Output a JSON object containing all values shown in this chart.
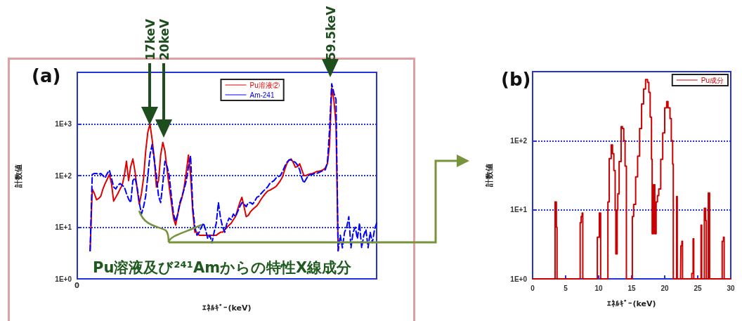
{
  "chart_data": [
    {
      "type": "line",
      "title": "(a)",
      "xlabel": "ｴﾈﾙｷﾞｰ(keV)",
      "ylabel": "計数値",
      "categories": [
        null,
        null,
        null,
        null,
        null,
        null,
        null,
        null,
        null,
        null,
        null,
        null,
        null,
        null,
        null,
        null,
        null,
        null,
        null,
        null,
        null,
        null,
        null,
        null,
        null,
        null,
        null,
        null,
        null,
        null,
        null,
        null,
        null,
        null,
        null,
        null,
        null,
        null,
        null,
        null,
        null,
        null,
        null,
        null,
        null,
        null,
        null,
        null,
        null,
        null,
        null,
        null,
        null,
        null,
        null,
        null,
        null,
        null,
        null,
        null,
        null,
        null,
        null,
        null,
        null,
        null,
        null,
        null,
        null,
        null,
        null,
        null,
        null,
        null,
        null,
        null,
        null,
        null,
        null,
        null,
        null,
        null,
        null,
        null,
        null,
        null,
        null,
        null,
        null,
        null,
        null,
        null,
        null,
        null,
        null,
        null,
        null,
        null,
        null,
        null,
        null,
        null,
        null,
        null,
        null,
        null,
        null,
        null,
        null,
        null,
        null,
        null,
        null,
        null,
        null,
        null,
        null,
        null,
        null,
        null,
        null,
        null,
        null,
        null,
        null,
        null,
        null,
        null,
        null,
        null,
        null,
        null,
        null,
        null,
        null,
        null,
        null,
        null,
        null,
        null,
        null
      ],
      "ylim": [
        1,
        10000
      ],
      "yticks": [
        {
          "value": 1,
          "label": "1E+0"
        },
        {
          "value": 10,
          "label": "1E+1"
        },
        {
          "value": 100,
          "label": "1E+2"
        },
        {
          "value": 1000,
          "label": "1E+3"
        },
        {
          "value": 10000,
          "label": null
        }
      ],
      "log": "y",
      "grid": "y",
      "legend": "top",
      "marker": "none",
      "annotations": [
        "17keV",
        "20keV",
        "59.5keV",
        "Pu溶液及び²⁴¹Amからの特性X線成分",
        "0"
      ],
      "series": [
        {
          "name": "Pu溶液②",
          "color": "#e00000",
          "line_style": "solid",
          "values": [
            null,
            null,
            null,
            null,
            null,
            null,
            3.5,
            55,
            45,
            34,
            36,
            40,
            55,
            70,
            85,
            105,
            70,
            32,
            38,
            45,
            55,
            65,
            100,
            190,
            80,
            150,
            210,
            120,
            55,
            28,
            45,
            90,
            300,
            700,
            1000,
            500,
            220,
            60,
            80,
            250,
            440,
            300,
            130,
            60,
            30,
            15,
            11,
            18,
            28,
            38,
            60,
            120,
            250,
            100,
            20,
            8,
            8,
            7,
            7,
            7,
            7,
            7,
            7,
            7,
            7,
            7,
            7.5,
            8,
            8,
            9,
            10,
            11,
            12,
            14,
            16,
            22,
            30,
            38,
            25,
            16,
            17,
            20,
            22,
            24,
            26,
            30,
            35,
            40,
            45,
            50,
            52,
            55,
            58,
            62,
            70,
            80,
            95,
            130,
            170,
            200,
            210,
            180,
            145,
            150,
            170,
            130,
            100,
            100,
            105,
            108,
            110,
            115,
            120,
            122,
            125,
            130,
            140,
            170,
            400,
            5000,
            3000,
            1000,
            3.5,
            null,
            null,
            null,
            null,
            null,
            null,
            null,
            null,
            null,
            null,
            null,
            null,
            null,
            null,
            null,
            null,
            null,
            null
          ]
        },
        {
          "name": "Am-241",
          "color": "#0000ff",
          "line_style": "dashed",
          "values": [
            null,
            null,
            null,
            null,
            null,
            null,
            3.5,
            105,
            110,
            110,
            105,
            110,
            100,
            90,
            110,
            127,
            90,
            60,
            55,
            65,
            70,
            65,
            60,
            45,
            35,
            30,
            80,
            90,
            60,
            30,
            18,
            25,
            40,
            100,
            250,
            400,
            200,
            100,
            40,
            30,
            70,
            190,
            150,
            100,
            40,
            18,
            13,
            18,
            30,
            40,
            55,
            80,
            150,
            240,
            25,
            10,
            7,
            8,
            10,
            12,
            9,
            6,
            7,
            5,
            8,
            12,
            30,
            15,
            10,
            8,
            12,
            15,
            14,
            18,
            16,
            20,
            25,
            30,
            28,
            25,
            30,
            30,
            28,
            32,
            38,
            40,
            45,
            50,
            55,
            60,
            70,
            75,
            80,
            90,
            95,
            100,
            120,
            150,
            180,
            200,
            200,
            190,
            180,
            160,
            130,
            90,
            72,
            85,
            100,
            105,
            105,
            110,
            110,
            115,
            120,
            125,
            130,
            180,
            800,
            6000,
            4000,
            3000,
            3.5,
            7,
            4,
            8,
            10,
            16,
            4,
            8,
            10,
            6,
            12,
            4,
            7,
            9,
            4,
            8,
            5,
            9,
            12
          ]
        }
      ]
    },
    {
      "type": "step",
      "title": "(b)",
      "xlabel": "ｴﾈﾙｷﾞｰ(keV)",
      "ylabel": "計数値",
      "xlim": [
        0,
        30
      ],
      "xticks": [
        0,
        5,
        10,
        15,
        20,
        25,
        30
      ],
      "ylim": [
        1,
        1000
      ],
      "yticks": [
        {
          "value": 1,
          "label": "1E+0"
        },
        {
          "value": 10,
          "label": "1E+1"
        },
        {
          "value": 100,
          "label": "1E+2"
        }
      ],
      "log": "y",
      "grid": "y",
      "legend": "top right",
      "marker": "none",
      "series": [
        {
          "name": "Pu成分",
          "color": "#cc0000",
          "line_style": "solid",
          "x": [
            0,
            3.3,
            3.4,
            3.6,
            3.7,
            7.1,
            7.2,
            7.35,
            7.5,
            7.6,
            9.8,
            10.1,
            10.3,
            11.3,
            11.4,
            11.6,
            11.9,
            12.1,
            12.3,
            12.5,
            12.6,
            12.8,
            12.9,
            13.1,
            13.4,
            13.6,
            13.8,
            14.0,
            14.2,
            15.0,
            15.1,
            15.3,
            15.6,
            15.9,
            16.2,
            16.5,
            16.8,
            17.1,
            17.4,
            17.6,
            17.8,
            18.0,
            18.1,
            18.3,
            18.5,
            18.7,
            18.9,
            19.1,
            19.4,
            19.7,
            20.0,
            20.3,
            20.5,
            20.8,
            21.0,
            21.2,
            21.3,
            21.7,
            21.8,
            21.9,
            22.4,
            22.45,
            22.6,
            22.7,
            24.0,
            24.1,
            24.3,
            24.4,
            25.4,
            25.5,
            25.6,
            25.9,
            26.0,
            26.2,
            26.3,
            26.5,
            26.6,
            26.8,
            28.6,
            28.7,
            28.9,
            29.0,
            30
          ],
          "values": [
            1,
            1,
            13,
            5.6,
            1,
            1,
            6.5,
            8,
            9,
            1,
            4,
            9,
            1,
            1,
            13,
            55,
            87,
            65,
            37,
            10,
            2.3,
            10,
            17,
            50,
            160,
            150,
            100,
            43,
            1,
            1,
            8,
            12,
            30,
            60,
            150,
            340,
            560,
            770,
            700,
            500,
            220,
            54,
            4.5,
            23,
            4.5,
            13,
            16,
            20,
            54,
            130,
            300,
            370,
            300,
            210,
            100,
            46,
            1,
            1,
            15.6,
            1,
            1,
            3,
            3.5,
            1,
            1,
            1.2,
            3.8,
            1,
            1,
            6,
            1,
            1,
            10.5,
            7,
            1,
            1,
            17.5,
            1,
            1,
            3.5,
            4,
            1,
            1
          ]
        }
      ]
    }
  ]
}
